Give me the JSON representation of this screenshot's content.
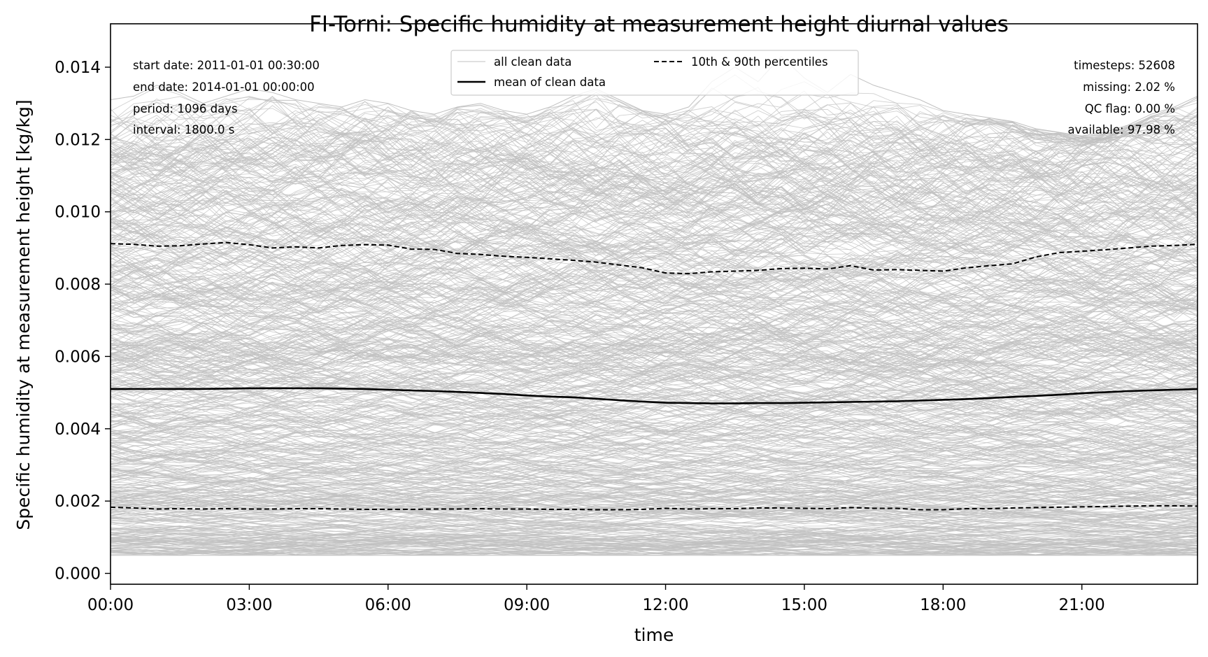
{
  "chart_data": {
    "type": "line",
    "title": "FI-Torni: Specific humidity at measurement height diurnal values",
    "xlabel": "time",
    "ylabel": "Specific humidity at measurement height [kg/kg]",
    "xlim": [
      "00:00",
      "23:30"
    ],
    "ylim": [
      -0.0003,
      0.0152
    ],
    "x_ticks": [
      "00:00",
      "03:00",
      "06:00",
      "09:00",
      "12:00",
      "15:00",
      "18:00",
      "21:00"
    ],
    "y_ticks": [
      "0.000",
      "0.002",
      "0.004",
      "0.006",
      "0.008",
      "0.010",
      "0.012",
      "0.014"
    ],
    "grid": false,
    "legend": {
      "placement": "top-center",
      "entries": [
        {
          "label": "all clean data",
          "color": "#c0c0c0",
          "style": "thin-solid"
        },
        {
          "label": "mean of clean data",
          "color": "#000000",
          "style": "solid"
        },
        {
          "label": "10th & 90th percentiles",
          "color": "#000000",
          "style": "dashed"
        }
      ]
    },
    "stats_left": [
      "start date: 2011-01-01 00:30:00",
      "end date: 2014-01-01 00:00:00",
      "period: 1096 days",
      "interval: 1800.0 s"
    ],
    "stats_right": [
      "timesteps: 52608",
      "missing: 2.02 %",
      "QC flag: 0.00 %",
      "available: 97.98 %"
    ],
    "colors": {
      "background_lines": "#c0c0c0",
      "mean": "#000000",
      "percentiles": "#000000"
    },
    "x_hours": [
      0,
      0.5,
      1,
      1.5,
      2,
      2.5,
      3,
      3.5,
      4,
      4.5,
      5,
      5.5,
      6,
      6.5,
      7,
      7.5,
      8,
      8.5,
      9,
      9.5,
      10,
      10.5,
      11,
      11.5,
      12,
      12.5,
      13,
      13.5,
      14,
      14.5,
      15,
      15.5,
      16,
      16.5,
      17,
      17.5,
      18,
      18.5,
      19,
      19.5,
      20,
      20.5,
      21,
      21.5,
      22,
      22.5,
      23,
      23.5
    ],
    "series": [
      {
        "name": "mean of clean data",
        "values": [
          0.0051,
          0.0051,
          0.0051,
          0.0051,
          0.0051,
          0.00511,
          0.00512,
          0.00512,
          0.00512,
          0.00512,
          0.00511,
          0.0051,
          0.00508,
          0.00506,
          0.00504,
          0.00502,
          0.00499,
          0.00496,
          0.00492,
          0.00489,
          0.00487,
          0.00483,
          0.00479,
          0.00475,
          0.00472,
          0.00471,
          0.0047,
          0.0047,
          0.00471,
          0.00471,
          0.00472,
          0.00473,
          0.00474,
          0.00475,
          0.00476,
          0.00478,
          0.0048,
          0.00482,
          0.00485,
          0.00488,
          0.00491,
          0.00494,
          0.00498,
          0.00501,
          0.00504,
          0.00506,
          0.00508,
          0.0051
        ]
      },
      {
        "name": "90th percentile",
        "values": [
          0.00912,
          0.0091,
          0.00905,
          0.00906,
          0.00911,
          0.00915,
          0.00909,
          0.009,
          0.00903,
          0.009,
          0.00907,
          0.00909,
          0.00908,
          0.00897,
          0.00896,
          0.00885,
          0.00882,
          0.00877,
          0.00874,
          0.0087,
          0.00866,
          0.00861,
          0.00853,
          0.00845,
          0.00831,
          0.00829,
          0.00834,
          0.00836,
          0.00838,
          0.00843,
          0.00844,
          0.00842,
          0.00851,
          0.00839,
          0.0084,
          0.00838,
          0.00836,
          0.00845,
          0.00851,
          0.00856,
          0.00875,
          0.00887,
          0.00891,
          0.00895,
          0.009,
          0.00905,
          0.00907,
          0.0091
        ]
      },
      {
        "name": "10th percentile",
        "values": [
          0.00183,
          0.00181,
          0.00178,
          0.00179,
          0.00178,
          0.00179,
          0.00178,
          0.00178,
          0.00179,
          0.00179,
          0.00178,
          0.00177,
          0.00177,
          0.00177,
          0.00178,
          0.00178,
          0.00179,
          0.00178,
          0.00178,
          0.00177,
          0.00177,
          0.00176,
          0.00176,
          0.00177,
          0.0018,
          0.00178,
          0.00179,
          0.00179,
          0.00181,
          0.00181,
          0.0018,
          0.00179,
          0.00182,
          0.0018,
          0.0018,
          0.00176,
          0.00176,
          0.00179,
          0.00179,
          0.00181,
          0.00182,
          0.00183,
          0.00184,
          0.00185,
          0.00186,
          0.00187,
          0.00187,
          0.00186
        ]
      }
    ],
    "background_band": {
      "name": "all clean data",
      "envelope_max": [
        0.0131,
        0.0132,
        0.0135,
        0.0133,
        0.013,
        0.0132,
        0.0134,
        0.0133,
        0.0131,
        0.013,
        0.0129,
        0.0131,
        0.013,
        0.0128,
        0.0127,
        0.0129,
        0.013,
        0.0128,
        0.0127,
        0.0129,
        0.0132,
        0.0134,
        0.0131,
        0.0128,
        0.0127,
        0.0129,
        0.0136,
        0.014,
        0.0136,
        0.0143,
        0.0137,
        0.0133,
        0.0138,
        0.0135,
        0.0133,
        0.0131,
        0.0128,
        0.0127,
        0.0126,
        0.0125,
        0.0123,
        0.0122,
        0.0121,
        0.0122,
        0.0124,
        0.0127,
        0.0129,
        0.0132
      ],
      "envelope_min": [
        0.0005,
        0.0005,
        0.0005,
        0.0005,
        0.0005,
        0.0005,
        0.0005,
        0.0005,
        0.0005,
        0.0005,
        0.0005,
        0.0005,
        0.0005,
        0.0005,
        0.0005,
        0.0005,
        0.0005,
        0.0005,
        0.0005,
        0.0005,
        0.0005,
        0.0005,
        0.0005,
        0.0005,
        0.0005,
        0.0005,
        0.0005,
        0.0005,
        0.0005,
        0.0005,
        0.0005,
        0.0005,
        0.0005,
        0.0005,
        0.0005,
        0.0005,
        0.0005,
        0.0005,
        0.0005,
        0.0005,
        0.0005,
        0.0005,
        0.0005,
        0.0005,
        0.0005,
        0.0005,
        0.0005,
        0.0005
      ]
    }
  }
}
